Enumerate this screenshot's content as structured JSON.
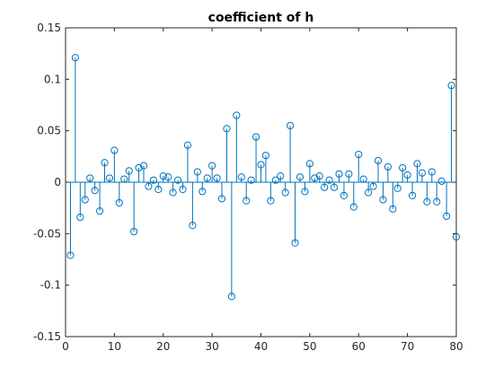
{
  "chart_data": {
    "type": "stem",
    "title": "coefficient of h",
    "xlabel": "",
    "ylabel": "",
    "xlim": [
      0,
      80
    ],
    "ylim": [
      -0.15,
      0.15
    ],
    "x_ticks": [
      0,
      10,
      20,
      30,
      40,
      50,
      60,
      70,
      80
    ],
    "y_ticks": [
      0.15,
      0.1,
      0.05,
      0,
      -0.05,
      -0.1,
      -0.15
    ],
    "x_tick_labels": [
      "0",
      "10",
      "20",
      "30",
      "40",
      "50",
      "60",
      "70",
      "80"
    ],
    "y_tick_labels": [
      "0.15",
      "0.1",
      "0.05",
      "0",
      "-0.05",
      "-0.1",
      "-0.15"
    ],
    "baseline": 0,
    "marker": "circle-open",
    "color": "#0072BD",
    "grid": false,
    "x": [
      1,
      2,
      3,
      4,
      5,
      6,
      7,
      8,
      9,
      10,
      11,
      12,
      13,
      14,
      15,
      16,
      17,
      18,
      19,
      20,
      21,
      22,
      23,
      24,
      25,
      26,
      27,
      28,
      29,
      30,
      31,
      32,
      33,
      34,
      35,
      36,
      37,
      38,
      39,
      40,
      41,
      42,
      43,
      44,
      45,
      46,
      47,
      48,
      49,
      50,
      51,
      52,
      53,
      54,
      55,
      56,
      57,
      58,
      59,
      60,
      61,
      62,
      63,
      64,
      65,
      66,
      67,
      68,
      69,
      70,
      71,
      72,
      73,
      74,
      75,
      76,
      77,
      78,
      79,
      80
    ],
    "values": [
      -0.071,
      0.121,
      -0.034,
      -0.017,
      0.004,
      -0.008,
      -0.028,
      0.019,
      0.004,
      0.031,
      -0.02,
      0.003,
      0.011,
      -0.048,
      0.014,
      0.016,
      -0.004,
      0.002,
      -0.007,
      0.006,
      0.005,
      -0.01,
      0.002,
      -0.007,
      0.036,
      -0.042,
      0.01,
      -0.009,
      0.004,
      0.016,
      0.004,
      -0.016,
      0.052,
      -0.111,
      0.065,
      0.005,
      -0.018,
      0.002,
      0.044,
      0.017,
      0.026,
      -0.018,
      0.002,
      0.006,
      -0.01,
      0.055,
      -0.059,
      0.005,
      -0.009,
      0.018,
      0.004,
      0.006,
      -0.005,
      0.002,
      -0.005,
      0.008,
      -0.013,
      0.008,
      -0.024,
      0.027,
      0.003,
      -0.01,
      -0.004,
      0.021,
      -0.017,
      0.015,
      -0.026,
      -0.006,
      0.014,
      0.007,
      -0.013,
      0.018,
      0.009,
      -0.019,
      0.01,
      -0.019,
      0.001,
      -0.033,
      0.094,
      -0.053
    ]
  }
}
